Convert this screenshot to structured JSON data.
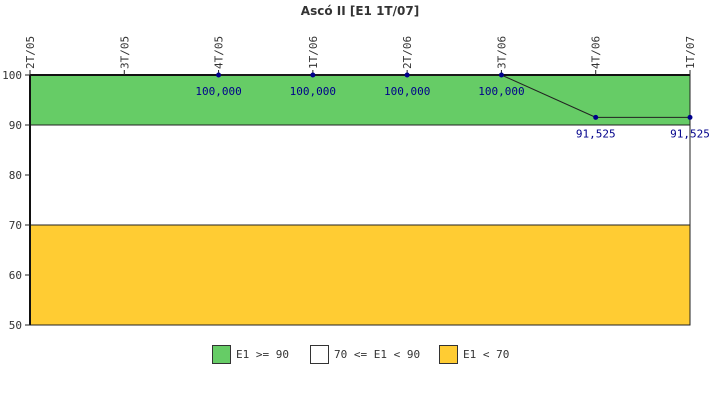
{
  "chart_data": {
    "type": "line",
    "title": "Ascó II [E1 1T/07]",
    "categories": [
      "2T/05",
      "3T/05",
      "4T/05",
      "1T/06",
      "2T/06",
      "3T/06",
      "4T/06",
      "1T/07"
    ],
    "series": [
      {
        "values": [
          null,
          null,
          100,
          100,
          100,
          100,
          91.525,
          91.525
        ],
        "labels": [
          null,
          null,
          "100,000",
          "100,000",
          "100,000",
          "100,000",
          "91,525",
          "91,525"
        ],
        "color": "#00008b"
      }
    ],
    "yticks": [
      50,
      60,
      70,
      80,
      90,
      100
    ],
    "ylim": [
      50,
      100
    ],
    "bands": [
      {
        "from": 90,
        "to": 100,
        "color": "#66cc66",
        "label": "E1 >= 90"
      },
      {
        "from": 70,
        "to": 90,
        "color": "#ffffff",
        "label": "70 <= E1 < 90"
      },
      {
        "from": 50,
        "to": 70,
        "color": "#ffcc33",
        "label": "E1 < 70"
      }
    ],
    "legend_position": "bottom",
    "grid": false
  }
}
